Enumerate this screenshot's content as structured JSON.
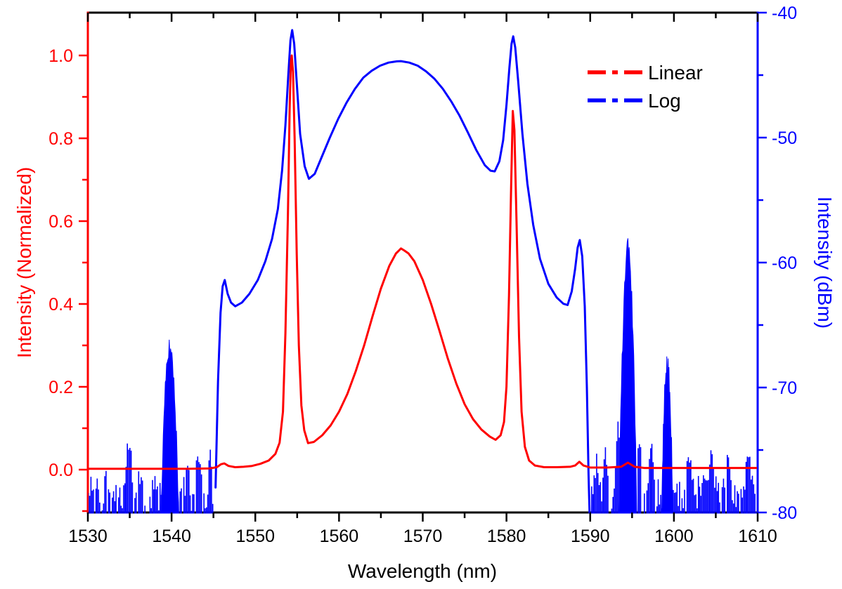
{
  "colors": {
    "linear": "#FF0000",
    "log": "#0000FF",
    "frame": "#000000",
    "background": "#FFFFFF"
  },
  "chart_data": {
    "type": "line",
    "title": "",
    "xlabel": "Wavelength (nm)",
    "x_range": [
      1530,
      1610
    ],
    "x_major_ticks": [
      1530,
      1540,
      1550,
      1560,
      1570,
      1580,
      1590,
      1600,
      1610
    ],
    "x_tick_labels": [
      "1530",
      "1540",
      "1550",
      "1560",
      "1570",
      "1580",
      "1590",
      "1600",
      "1610"
    ],
    "x_minor_step": 5,
    "grid": false,
    "legend_position": "upper-right",
    "left_axis": {
      "label": "Intensity (Normalized)",
      "color": "#FF0000",
      "ticks": [
        0.0,
        0.2,
        0.4,
        0.6,
        0.8,
        1.0
      ],
      "tick_labels": [
        "0.0",
        "0.2",
        "0.4",
        "0.6",
        "0.8",
        "1.0"
      ],
      "minor_step": 0.1,
      "view_range": [
        -0.1034,
        1.1034
      ]
    },
    "right_axis": {
      "label": "Intensity (dBm)",
      "color": "#0000FF",
      "ticks": [
        -80,
        -70,
        -60,
        -50,
        -40
      ],
      "tick_labels": [
        "-80",
        "-70",
        "-60",
        "-50",
        "-40"
      ],
      "minor_step": 5,
      "view_range": [
        -80,
        -40
      ]
    },
    "legend": [
      {
        "label": "Linear",
        "color": "#FF0000"
      },
      {
        "label": "Log",
        "color": "#0000FF"
      }
    ],
    "layout": {
      "plot_left": 125,
      "plot_right": 1078,
      "plot_top": 18,
      "plot_bottom": 730
    },
    "series": [
      {
        "name": "Linear",
        "axis": "left",
        "color": "#FF0000",
        "points": [
          [
            1530,
            0.002
          ],
          [
            1534,
            0.002
          ],
          [
            1538,
            0.002
          ],
          [
            1542,
            0.002
          ],
          [
            1544.6,
            0.003
          ],
          [
            1545.4,
            0.006
          ],
          [
            1545.9,
            0.013
          ],
          [
            1546.3,
            0.015
          ],
          [
            1546.8,
            0.009
          ],
          [
            1547.6,
            0.006
          ],
          [
            1548.6,
            0.007
          ],
          [
            1549.6,
            0.009
          ],
          [
            1550.6,
            0.014
          ],
          [
            1551.6,
            0.022
          ],
          [
            1552.4,
            0.038
          ],
          [
            1552.9,
            0.065
          ],
          [
            1553.3,
            0.14
          ],
          [
            1553.6,
            0.33
          ],
          [
            1553.9,
            0.62
          ],
          [
            1554.1,
            0.87
          ],
          [
            1554.25,
            0.985
          ],
          [
            1554.35,
            1.0
          ],
          [
            1554.5,
            0.96
          ],
          [
            1554.7,
            0.8
          ],
          [
            1554.95,
            0.52
          ],
          [
            1555.2,
            0.3
          ],
          [
            1555.5,
            0.155
          ],
          [
            1555.85,
            0.095
          ],
          [
            1556.3,
            0.064
          ],
          [
            1557,
            0.067
          ],
          [
            1558,
            0.083
          ],
          [
            1559,
            0.107
          ],
          [
            1560,
            0.14
          ],
          [
            1561,
            0.183
          ],
          [
            1562,
            0.238
          ],
          [
            1563,
            0.3
          ],
          [
            1564,
            0.37
          ],
          [
            1565,
            0.437
          ],
          [
            1566,
            0.492
          ],
          [
            1566.8,
            0.522
          ],
          [
            1567.1,
            0.528
          ],
          [
            1567.4,
            0.534
          ],
          [
            1567.8,
            0.529
          ],
          [
            1568.3,
            0.522
          ],
          [
            1569,
            0.503
          ],
          [
            1570,
            0.458
          ],
          [
            1571,
            0.4
          ],
          [
            1572,
            0.335
          ],
          [
            1573,
            0.268
          ],
          [
            1574,
            0.208
          ],
          [
            1575,
            0.158
          ],
          [
            1576,
            0.122
          ],
          [
            1577,
            0.097
          ],
          [
            1578,
            0.08
          ],
          [
            1578.7,
            0.072
          ],
          [
            1579.3,
            0.083
          ],
          [
            1579.7,
            0.115
          ],
          [
            1580.0,
            0.2
          ],
          [
            1580.3,
            0.42
          ],
          [
            1580.55,
            0.68
          ],
          [
            1580.75,
            0.866
          ],
          [
            1580.95,
            0.82
          ],
          [
            1581.2,
            0.6
          ],
          [
            1581.5,
            0.32
          ],
          [
            1581.8,
            0.14
          ],
          [
            1582.2,
            0.055
          ],
          [
            1582.7,
            0.022
          ],
          [
            1583.4,
            0.01
          ],
          [
            1584.5,
            0.006
          ],
          [
            1586,
            0.006
          ],
          [
            1587.6,
            0.007
          ],
          [
            1588.2,
            0.01
          ],
          [
            1588.7,
            0.019
          ],
          [
            1589.2,
            0.01
          ],
          [
            1590,
            0.005
          ],
          [
            1592,
            0.005
          ],
          [
            1593.7,
            0.007
          ],
          [
            1594.5,
            0.017
          ],
          [
            1595.3,
            0.007
          ],
          [
            1596.5,
            0.004
          ],
          [
            1599,
            0.004
          ],
          [
            1602,
            0.004
          ],
          [
            1606,
            0.004
          ],
          [
            1610,
            0.004
          ]
        ]
      },
      {
        "name": "Log",
        "axis": "right",
        "color": "#0000FF",
        "points": [
          [
            1545.25,
            -78
          ],
          [
            1545.55,
            -69.5
          ],
          [
            1545.85,
            -64.0
          ],
          [
            1546.1,
            -61.9
          ],
          [
            1546.35,
            -61.4
          ],
          [
            1546.7,
            -62.5
          ],
          [
            1547.1,
            -63.2
          ],
          [
            1547.6,
            -63.5
          ],
          [
            1548.4,
            -63.2
          ],
          [
            1549.3,
            -62.5
          ],
          [
            1550.3,
            -61.4
          ],
          [
            1551.2,
            -59.9
          ],
          [
            1552.0,
            -58.1
          ],
          [
            1552.7,
            -55.7
          ],
          [
            1553.2,
            -52.6
          ],
          [
            1553.6,
            -49.0
          ],
          [
            1553.95,
            -44.9
          ],
          [
            1554.2,
            -42.2
          ],
          [
            1554.4,
            -41.4
          ],
          [
            1554.65,
            -42.5
          ],
          [
            1554.95,
            -45.6
          ],
          [
            1555.35,
            -49.7
          ],
          [
            1555.9,
            -52.3
          ],
          [
            1556.4,
            -53.3
          ],
          [
            1557.1,
            -52.9
          ],
          [
            1557.9,
            -51.6
          ],
          [
            1558.9,
            -50.0
          ],
          [
            1559.9,
            -48.5
          ],
          [
            1560.9,
            -47.2
          ],
          [
            1561.9,
            -46.1
          ],
          [
            1562.9,
            -45.2
          ],
          [
            1563.9,
            -44.65
          ],
          [
            1564.9,
            -44.25
          ],
          [
            1565.9,
            -44.0
          ],
          [
            1566.9,
            -43.9
          ],
          [
            1567.4,
            -43.88
          ],
          [
            1568.4,
            -44.0
          ],
          [
            1569.4,
            -44.25
          ],
          [
            1570.4,
            -44.7
          ],
          [
            1571.4,
            -45.3
          ],
          [
            1572.4,
            -46.1
          ],
          [
            1573.4,
            -47.1
          ],
          [
            1574.4,
            -48.25
          ],
          [
            1575.4,
            -49.6
          ],
          [
            1576.4,
            -51.0
          ],
          [
            1577.4,
            -52.2
          ],
          [
            1578.1,
            -52.65
          ],
          [
            1578.6,
            -52.7
          ],
          [
            1579.15,
            -51.9
          ],
          [
            1579.6,
            -50.2
          ],
          [
            1580.0,
            -47.4
          ],
          [
            1580.35,
            -44.4
          ],
          [
            1580.6,
            -42.5
          ],
          [
            1580.8,
            -41.9
          ],
          [
            1581.05,
            -42.8
          ],
          [
            1581.4,
            -45.5
          ],
          [
            1581.9,
            -49.7
          ],
          [
            1582.5,
            -53.7
          ],
          [
            1583.2,
            -57.0
          ],
          [
            1584,
            -59.7
          ],
          [
            1585,
            -61.7
          ],
          [
            1586,
            -62.8
          ],
          [
            1586.8,
            -63.3
          ],
          [
            1587.3,
            -63.4
          ],
          [
            1587.8,
            -62.3
          ],
          [
            1588.2,
            -60.5
          ],
          [
            1588.5,
            -58.8
          ],
          [
            1588.75,
            -58.2
          ],
          [
            1589.05,
            -59.5
          ],
          [
            1589.35,
            -63.5
          ],
          [
            1589.6,
            -70
          ],
          [
            1589.8,
            -77
          ],
          [
            1589.95,
            -80.8
          ]
        ],
        "noise_regions": [
          {
            "x_start": 1530,
            "x_end": 1545.28,
            "floor_top": -76.9,
            "floor_bottom": -81.3,
            "seed": 11,
            "bar_bumps": [
              {
                "c": 1532.2,
                "top": -76.2,
                "w": 0.6
              },
              {
                "c": 1534.9,
                "top": -73.9,
                "w": 0.75
              },
              {
                "c": 1536.0,
                "top": -75.8,
                "w": 0.5
              },
              {
                "c": 1541.9,
                "top": -75.8,
                "w": 0.6
              },
              {
                "c": 1543.2,
                "top": -75.2,
                "w": 0.9
              },
              {
                "c": 1544.6,
                "top": -74.9,
                "w": 0.5
              }
            ],
            "solid_bumps": [
              {
                "c": 1539.8,
                "top": -66.9,
                "w": 1.05,
                "k": 13
              }
            ]
          },
          {
            "x_start": 1589.95,
            "x_end": 1610,
            "floor_top": -77.0,
            "floor_bottom": -81.3,
            "seed": 23,
            "bar_bumps": [
              {
                "c": 1590.8,
                "top": -75.2,
                "w": 0.5
              },
              {
                "c": 1591.8,
                "top": -74.4,
                "w": 0.6
              },
              {
                "c": 1593.3,
                "top": -72.5,
                "w": 0.45
              },
              {
                "c": 1595.9,
                "top": -73.5,
                "w": 0.45
              },
              {
                "c": 1597.3,
                "top": -74.2,
                "w": 0.7
              },
              {
                "c": 1601.8,
                "top": -75.0,
                "w": 0.8
              },
              {
                "c": 1604.5,
                "top": -74.6,
                "w": 0.6
              },
              {
                "c": 1606.5,
                "top": -74.9,
                "w": 0.7
              },
              {
                "c": 1608.9,
                "top": -74.6,
                "w": 0.7
              }
            ],
            "solid_bumps": [
              {
                "c": 1594.5,
                "top": -59.0,
                "w": 1.0,
                "k": 19
              },
              {
                "c": 1599.2,
                "top": -68.3,
                "w": 0.8,
                "k": 16
              }
            ]
          }
        ]
      }
    ]
  }
}
